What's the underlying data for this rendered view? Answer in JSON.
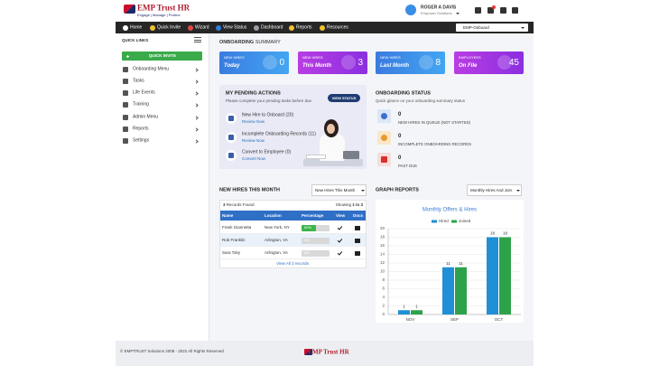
{
  "header": {
    "logo": "EMP Trust HR",
    "logo_tagline": "Engage | Manage | Protect",
    "user_name": "ROGER A DAVIS",
    "user_company": "Empower Solutions"
  },
  "nav": [
    "Home",
    "Quick Invite",
    "Wizard",
    "View Status",
    "Dashboard",
    "Reports",
    "Resources"
  ],
  "nav_select": "EMP-Onboard",
  "sidebar": {
    "title": "QUICK LINKS",
    "button": "QUICK INVITE",
    "items": [
      "Onboarding Menu",
      "Tasks",
      "Life Events",
      "Training",
      "Admin Menu",
      "Reports",
      "Settings"
    ]
  },
  "summary": {
    "title_bold": "ONBOARDING",
    "title_rest": "SUMMARY",
    "cards": [
      {
        "label": "NEW HIRES",
        "sub": "Today",
        "value": 0
      },
      {
        "label": "NEW HIRES",
        "sub": "This Month",
        "value": 3
      },
      {
        "label": "NEW HIRES",
        "sub": "Last Month",
        "value": 8
      },
      {
        "label": "EMPLOYEES",
        "sub": "On File",
        "value": 45
      }
    ]
  },
  "pending": {
    "title": "MY PENDING ACTIONS",
    "subtitle": "Please complete your pending tasks before due",
    "button": "VIEW STATUS",
    "items": [
      {
        "title": "New Hire to Onboard (20)",
        "link": "Review Now"
      },
      {
        "title": "Incomplete Onboarding Records (11)",
        "link": "Review Now"
      },
      {
        "title": "Convert to Employee (0)",
        "link": "Convert Now"
      }
    ]
  },
  "status": {
    "title": "ONBOARDING STATUS",
    "subtitle": "Quick glance on your onboarding summary status",
    "items": [
      {
        "value": 0,
        "label": "NEW HIRES IN QUEUE (NOT STARTED)"
      },
      {
        "value": 0,
        "label": "INCOMPLETE ONBOARDING RECORDS"
      },
      {
        "value": 0,
        "label": "PAST DUE"
      }
    ]
  },
  "new_hires": {
    "title": "NEW HIRES THIS MONTH",
    "filter": "New Hires This Month",
    "records_count": 3,
    "records_label": " Records Found",
    "showing_label": "Showing ",
    "showing_range": "1 to 3",
    "columns": [
      "Name",
      "Location",
      "Percentage",
      "View",
      "Docs"
    ],
    "rows": [
      {
        "name": "Frank Giannetta",
        "location": "New York, NY",
        "percentage": 50,
        "percentage_label": "50%"
      },
      {
        "name": "Rob Franklin",
        "location": "Arlington, VA",
        "percentage": 0,
        "percentage_label": "0%"
      },
      {
        "name": "Sara Toby",
        "location": "Arlington, VA",
        "percentage": 0,
        "percentage_label": "0%"
      }
    ],
    "view_all": "View All 3 records"
  },
  "graph": {
    "title": "GRAPH REPORTS",
    "filter": "Monthly Hires And Join"
  },
  "chart_data": {
    "type": "bar",
    "title": "Monthly Offers & Hires",
    "categories": [
      "NOV",
      "SEP",
      "OCT"
    ],
    "series": [
      {
        "name": "Hired",
        "color": "#1f8fd6",
        "values": [
          1,
          11,
          18
        ]
      },
      {
        "name": "Joined",
        "color": "#2ea24a",
        "values": [
          1,
          11,
          18
        ]
      }
    ],
    "ylim": [
      0,
      20
    ],
    "yticks": [
      0,
      2,
      4,
      6,
      8,
      10,
      12,
      14,
      16,
      18,
      20
    ],
    "grid": true,
    "legend": "top"
  },
  "footer": {
    "copyright": "© EMPTRUST Solutions 2008 - 2022 All Rights Reserved",
    "logo": "EMP Trust HR"
  }
}
